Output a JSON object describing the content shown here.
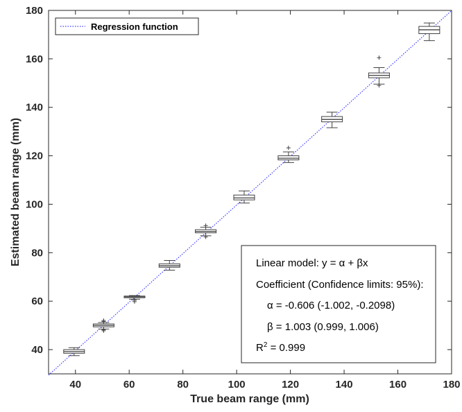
{
  "chart_data": {
    "type": "box",
    "xlabel": "True beam range (mm)",
    "ylabel": "Estimated beam range (mm)",
    "xlim": [
      30,
      180
    ],
    "ylim": [
      30,
      180
    ],
    "x_ticks": [
      40,
      60,
      80,
      100,
      120,
      140,
      160,
      180
    ],
    "y_ticks": [
      40,
      60,
      80,
      100,
      120,
      140,
      160,
      180
    ],
    "grid": false,
    "legend": {
      "placement": "top-left",
      "entries": [
        {
          "name": "Regression function",
          "style": "dotted",
          "color": "#3a3aff"
        }
      ]
    },
    "regression": {
      "alpha": -0.606,
      "beta": 1.003,
      "x_range": [
        30,
        180
      ]
    },
    "boxes": [
      {
        "x": 39.5,
        "whisker_low": 37.5,
        "q1": 38.5,
        "median": 39.2,
        "q3": 40.0,
        "whisker_high": 40.8,
        "outliers": []
      },
      {
        "x": 50.5,
        "whisker_low": 48.5,
        "q1": 49.4,
        "median": 50.0,
        "q3": 50.6,
        "whisker_high": 51.2,
        "outliers": [
          47.8,
          48.2,
          51.6,
          52.0
        ]
      },
      {
        "x": 62.0,
        "whisker_low": 60.8,
        "q1": 61.4,
        "median": 61.8,
        "q3": 62.1,
        "whisker_high": 62.3,
        "outliers": [
          59.8,
          60.4
        ]
      },
      {
        "x": 75.0,
        "whisker_low": 72.8,
        "q1": 74.0,
        "median": 74.6,
        "q3": 75.4,
        "whisker_high": 76.8,
        "outliers": []
      },
      {
        "x": 88.5,
        "whisker_low": 87.0,
        "q1": 88.2,
        "median": 88.8,
        "q3": 89.5,
        "whisker_high": 90.5,
        "outliers": [
          86.5,
          91.2
        ]
      },
      {
        "x": 102.8,
        "whisker_low": 100.5,
        "q1": 101.8,
        "median": 102.6,
        "q3": 103.8,
        "whisker_high": 105.5,
        "outliers": []
      },
      {
        "x": 119.3,
        "whisker_low": 117.2,
        "q1": 118.3,
        "median": 119.0,
        "q3": 120.0,
        "whisker_high": 121.6,
        "outliers": [
          123.3
        ]
      },
      {
        "x": 135.5,
        "whisker_low": 131.6,
        "q1": 134.0,
        "median": 135.0,
        "q3": 136.2,
        "whisker_high": 138.0,
        "outliers": []
      },
      {
        "x": 153.0,
        "whisker_low": 149.6,
        "q1": 152.2,
        "median": 153.2,
        "q3": 154.2,
        "whisker_high": 156.4,
        "outliers": [
          149.0,
          160.5
        ]
      },
      {
        "x": 171.7,
        "whisker_low": 167.5,
        "q1": 170.4,
        "median": 172.0,
        "q3": 173.4,
        "whisker_high": 174.8,
        "outliers": []
      }
    ],
    "annotations": [
      "Linear model: y = α + βx",
      "Coefficient (Confidence limits: 95%):",
      "α = -0.606 (-1.002, -0.2098)",
      "β = 1.003 (0.999, 1.006)",
      "R",
      "2",
      " = 0.999"
    ]
  },
  "colors": {
    "axis": "#262626",
    "box": "#404040",
    "regression": "#3a3aff"
  }
}
